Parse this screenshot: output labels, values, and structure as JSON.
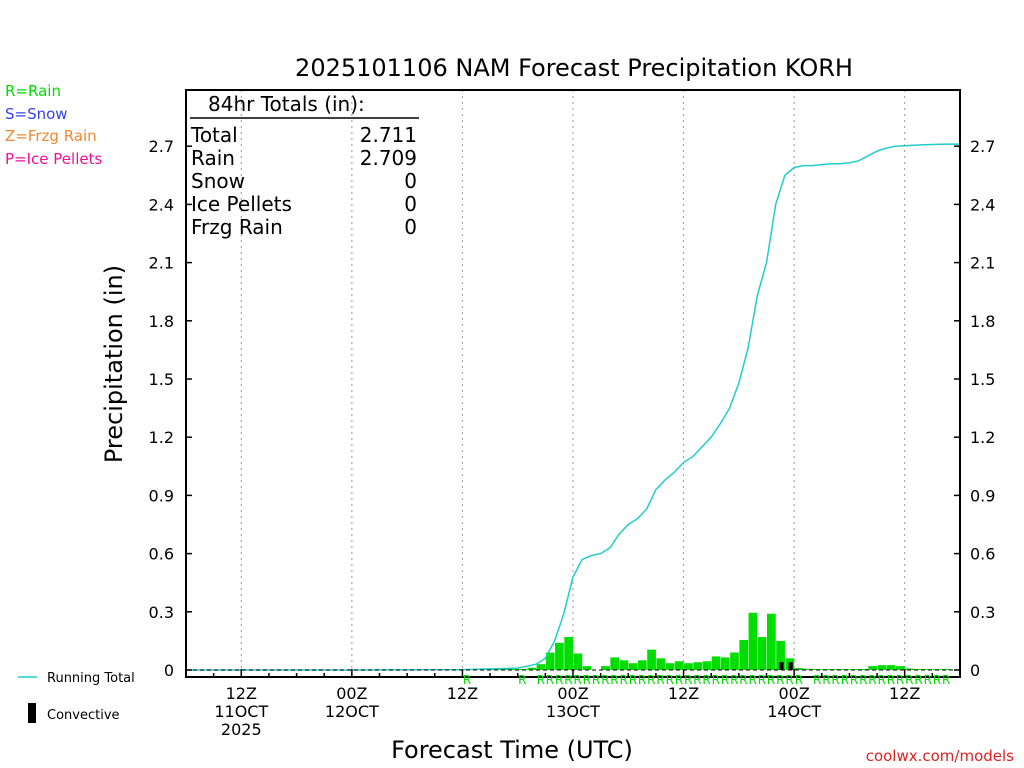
{
  "chart_data": {
    "type": "bar",
    "title": "2025101106 NAM Forecast Precipitation KORH",
    "xlabel": "Forecast Time (UTC)",
    "ylabel": "Precipitation (in)",
    "watermark": "coolwx.com/models",
    "ylim": [
      0,
      2.9
    ],
    "xlim_hours": [
      6,
      90
    ],
    "yticks": [
      0,
      0.3,
      0.6,
      0.9,
      1.2,
      1.5,
      1.8,
      2.1,
      2.4,
      2.7
    ],
    "ytick_labels": [
      "0",
      "0.3",
      "0.6",
      "0.9",
      "1.2",
      "1.5",
      "1.8",
      "2.1",
      "2.4",
      "2.7"
    ],
    "xticks": [
      {
        "hour": 12,
        "line1": "12Z",
        "line2": "11OCT",
        "line3": "2025"
      },
      {
        "hour": 24,
        "line1": "00Z",
        "line2": "12OCT",
        "line3": ""
      },
      {
        "hour": 36,
        "line1": "12Z",
        "line2": "",
        "line3": ""
      },
      {
        "hour": 48,
        "line1": "00Z",
        "line2": "13OCT",
        "line3": ""
      },
      {
        "hour": 60,
        "line1": "12Z",
        "line2": "",
        "line3": ""
      },
      {
        "hour": 72,
        "line1": "00Z",
        "line2": "14OCT",
        "line3": ""
      },
      {
        "hour": 84,
        "line1": "12Z",
        "line2": "",
        "line3": ""
      }
    ],
    "legend_ptype": [
      {
        "label": "R=Rain",
        "color": "#00dd00"
      },
      {
        "label": "S=Snow",
        "color": "#3344ee"
      },
      {
        "label": "Z=Frzg Rain",
        "color": "#ee8833"
      },
      {
        "label": "P=Ice Pellets",
        "color": "#ee1199"
      }
    ],
    "legend_lines": {
      "running_total": "Running Total",
      "convective": "Convective"
    },
    "totals": {
      "header": "84hr Totals (in):",
      "rows": [
        {
          "label": "Total",
          "value": "2.711"
        },
        {
          "label": "Rain",
          "value": "2.709"
        },
        {
          "label": "Snow",
          "value": "0"
        },
        {
          "label": "Ice Pellets",
          "value": "0"
        },
        {
          "label": "Frzg Rain",
          "value": "0"
        }
      ]
    },
    "colors": {
      "rain": "#00dd00",
      "running_total": "#22cccc",
      "convective": "#000000",
      "axis": "#000000",
      "grid": "#999999",
      "watermark": "#dd2222"
    },
    "series": [
      {
        "name": "Hourly Precipitation",
        "x": [
          36,
          37,
          38,
          39,
          40,
          41,
          42,
          43,
          44,
          45,
          46,
          47,
          48,
          49,
          50,
          51,
          52,
          53,
          54,
          55,
          56,
          57,
          58,
          59,
          60,
          61,
          62,
          63,
          64,
          65,
          66,
          67,
          68,
          69,
          70,
          71,
          72,
          73,
          74,
          75,
          76,
          77,
          78,
          79,
          80,
          81,
          82,
          83,
          84,
          85,
          86,
          87,
          88,
          89
        ],
        "values": [
          0.002,
          0.002,
          0.002,
          0.002,
          0.002,
          0.002,
          0.003,
          0.005,
          0.012,
          0.03,
          0.09,
          0.14,
          0.17,
          0.085,
          0.02,
          0.0,
          0.02,
          0.065,
          0.05,
          0.035,
          0.05,
          0.105,
          0.06,
          0.035,
          0.045,
          0.035,
          0.04,
          0.045,
          0.07,
          0.065,
          0.09,
          0.155,
          0.295,
          0.17,
          0.29,
          0.15,
          0.06,
          0.01,
          0.005,
          0.005,
          0.005,
          0.005,
          0.005,
          0.005,
          0.005,
          0.02,
          0.025,
          0.025,
          0.02,
          0.008,
          0.005,
          0.005,
          0.002,
          0.002
        ]
      },
      {
        "name": "Convective",
        "x": [
          71,
          72
        ],
        "values": [
          0.04,
          0.04
        ]
      },
      {
        "name": "Running Total",
        "x": [
          6,
          12,
          24,
          36,
          42,
          44,
          45,
          46,
          47,
          48,
          49,
          50,
          51,
          52,
          53,
          54,
          55,
          56,
          57,
          58,
          59,
          60,
          61,
          62,
          63,
          64,
          65,
          66,
          67,
          68,
          69,
          70,
          71,
          72,
          73,
          74,
          75,
          76,
          77,
          78,
          79,
          80,
          81,
          82,
          83,
          84,
          85,
          86,
          87,
          88,
          89,
          90
        ],
        "values": [
          0.0,
          0.0,
          0.0,
          0.002,
          0.01,
          0.03,
          0.06,
          0.15,
          0.29,
          0.48,
          0.57,
          0.59,
          0.6,
          0.63,
          0.7,
          0.75,
          0.78,
          0.83,
          0.93,
          0.98,
          1.02,
          1.07,
          1.1,
          1.15,
          1.2,
          1.27,
          1.35,
          1.48,
          1.66,
          1.93,
          2.1,
          2.4,
          2.55,
          2.59,
          2.6,
          2.6,
          2.605,
          2.61,
          2.61,
          2.615,
          2.625,
          2.65,
          2.675,
          2.69,
          2.7,
          2.702,
          2.705,
          2.707,
          2.709,
          2.71,
          2.711,
          2.711
        ]
      }
    ],
    "ptype_markers": {
      "symbol": "R",
      "hours": [
        37,
        43,
        45,
        46,
        47,
        48,
        49,
        50,
        51,
        52,
        53,
        54,
        55,
        56,
        57,
        58,
        59,
        60,
        61,
        62,
        63,
        64,
        65,
        66,
        67,
        68,
        69,
        70,
        71,
        72,
        73,
        75,
        76,
        77,
        78,
        79,
        80,
        81,
        82,
        83,
        84,
        85,
        86,
        87,
        88,
        89
      ]
    }
  }
}
